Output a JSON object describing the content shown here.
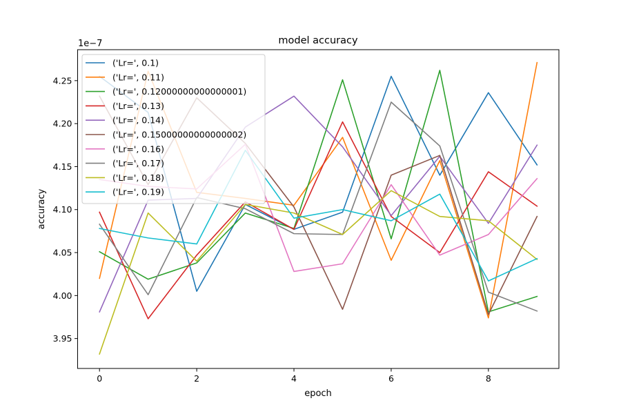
{
  "chart_data": {
    "type": "line",
    "title": "model accuracy",
    "xlabel": "epoch",
    "ylabel": "accuracy",
    "y_offset_label": "1e−7",
    "x": [
      0,
      1,
      2,
      3,
      4,
      5,
      6,
      7,
      8,
      9
    ],
    "xlim": [
      -0.45,
      9.45
    ],
    "ylim": [
      3.9152,
      4.286
    ],
    "xticks": [
      0,
      2,
      4,
      6,
      8
    ],
    "yticks": [
      3.95,
      4.0,
      4.05,
      4.1,
      4.15,
      4.2,
      4.25
    ],
    "xtick_labels": [
      "0",
      "2",
      "4",
      "6",
      "8"
    ],
    "ytick_labels": [
      "3.95",
      "4.00",
      "4.05",
      "4.10",
      "4.15",
      "4.20",
      "4.25"
    ],
    "grid": false,
    "legend_position": "top-left",
    "series": [
      {
        "name": "('Lr=', 0.1)",
        "color": "#1f77b4",
        "values": [
          4.255,
          4.213,
          4.005,
          4.106,
          4.077,
          4.097,
          4.255,
          4.14,
          4.236,
          4.152
        ]
      },
      {
        "name": "('Lr=', 0.11)",
        "color": "#ff7f0e",
        "values": [
          4.02,
          4.261,
          4.12,
          4.113,
          4.105,
          4.184,
          4.041,
          4.157,
          3.974,
          4.271
        ]
      },
      {
        "name": "('Lr=', 0.12000000000000001)",
        "color": "#2ca02c",
        "values": [
          4.051,
          4.019,
          4.038,
          4.096,
          4.078,
          4.251,
          4.066,
          4.262,
          3.981,
          3.999
        ]
      },
      {
        "name": "('Lr=', 0.13)",
        "color": "#d62728",
        "values": [
          4.097,
          3.973,
          4.047,
          4.109,
          4.077,
          4.202,
          4.092,
          4.05,
          4.144,
          4.104
        ]
      },
      {
        "name": "('Lr=', 0.14)",
        "color": "#9467bd",
        "values": [
          3.981,
          4.111,
          4.113,
          4.196,
          4.232,
          4.173,
          4.093,
          4.162,
          4.084,
          4.175
        ]
      },
      {
        "name": "('Lr=', 0.15000000000000002)",
        "color": "#8c564b",
        "values": [
          4.232,
          4.129,
          4.23,
          4.177,
          4.103,
          3.984,
          4.14,
          4.163,
          3.978,
          4.092
        ]
      },
      {
        "name": "('Lr=', 0.16)",
        "color": "#e377c2",
        "values": [
          4.135,
          4.127,
          4.124,
          4.176,
          4.028,
          4.037,
          4.129,
          4.047,
          4.071,
          4.136
        ]
      },
      {
        "name": "('Lr=', 0.17)",
        "color": "#7f7f7f",
        "values": [
          4.083,
          4.001,
          4.114,
          4.101,
          4.072,
          4.071,
          4.225,
          4.174,
          4.004,
          3.982
        ]
      },
      {
        "name": "('Lr=', 0.18)",
        "color": "#bcbd22",
        "values": [
          3.932,
          4.096,
          4.04,
          4.106,
          4.096,
          4.071,
          4.122,
          4.092,
          4.087,
          4.042
        ]
      },
      {
        "name": "('Lr=', 0.19)",
        "color": "#17becf",
        "values": [
          4.078,
          4.067,
          4.06,
          4.169,
          4.09,
          4.1,
          4.087,
          4.118,
          4.017,
          4.043
        ]
      }
    ]
  }
}
